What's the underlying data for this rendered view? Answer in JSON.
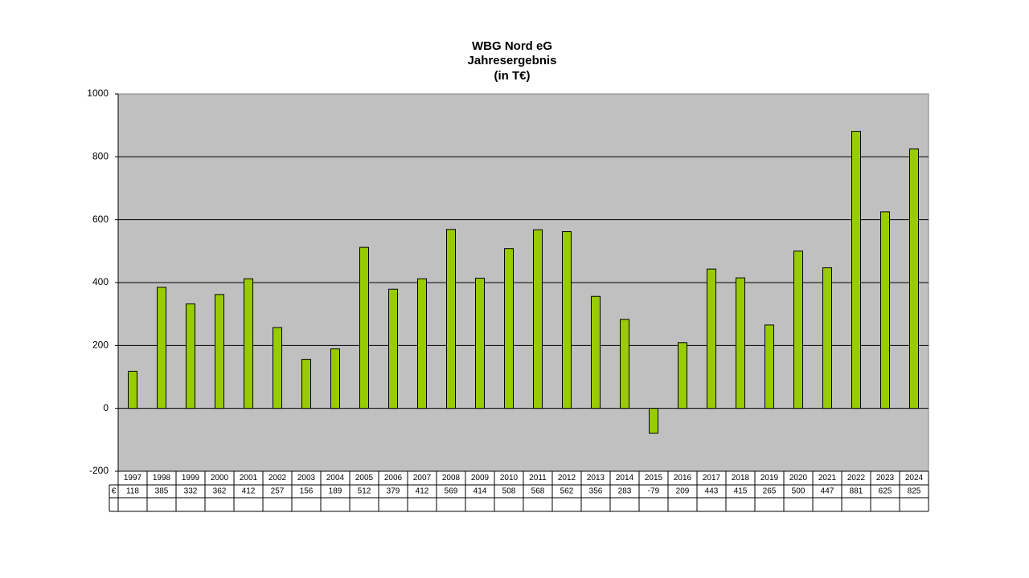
{
  "chart_data": {
    "type": "bar",
    "title": [
      "WBG Nord eG",
      "Jahresergebnis",
      "(in T€)"
    ],
    "categories": [
      "1997",
      "1998",
      "1999",
      "2000",
      "2001",
      "2002",
      "2003",
      "2004",
      "2005",
      "2006",
      "2007",
      "2008",
      "2009",
      "2010",
      "2011",
      "2012",
      "2013",
      "2014",
      "2015",
      "2016",
      "2017",
      "2018",
      "2019",
      "2020",
      "2021",
      "2022",
      "2023",
      "2024"
    ],
    "series_label": "€",
    "values": [
      118,
      385,
      332,
      362,
      412,
      257,
      156,
      189,
      512,
      379,
      412,
      569,
      414,
      508,
      568,
      562,
      356,
      283,
      -79,
      209,
      443,
      415,
      265,
      500,
      447,
      881,
      625,
      825
    ],
    "color": "#99cc00",
    "ylim": [
      -200,
      1000
    ],
    "yticks": [
      -200,
      0,
      200,
      400,
      600,
      800,
      1000
    ],
    "grid": true
  }
}
